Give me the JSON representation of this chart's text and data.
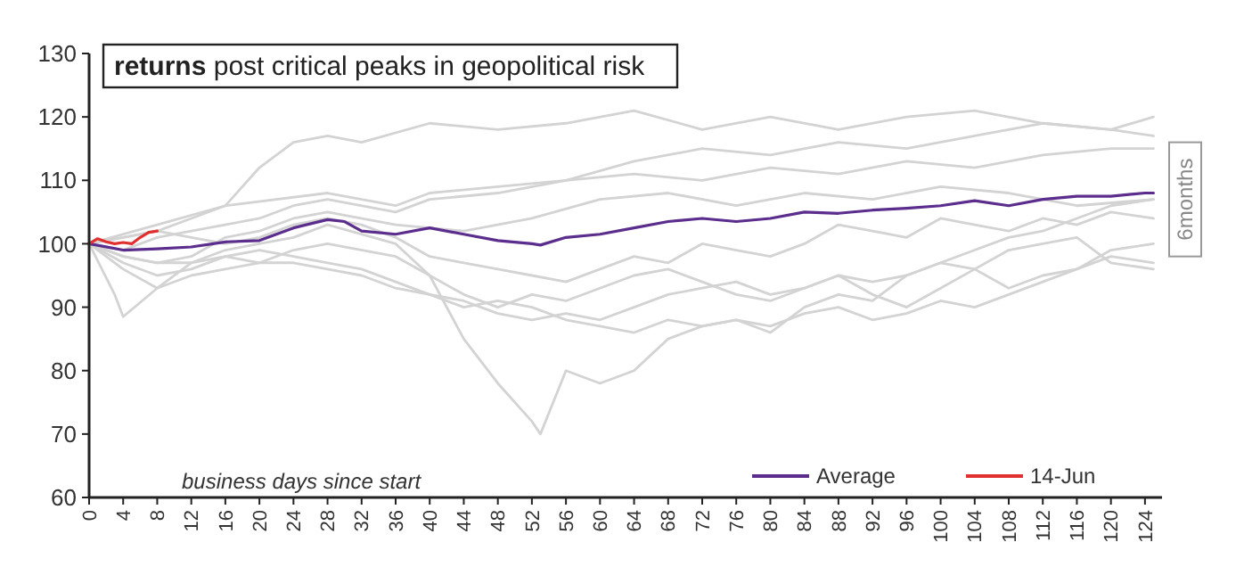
{
  "chart_data": {
    "type": "line",
    "title": "returns post critical peaks in geopolitical risk",
    "xlim": [
      0,
      126
    ],
    "xticks": [
      0,
      4,
      8,
      12,
      16,
      20,
      24,
      28,
      32,
      36,
      40,
      44,
      48,
      52,
      56,
      60,
      64,
      68,
      72,
      76,
      80,
      84,
      88,
      92,
      96,
      100,
      104,
      108,
      112,
      116,
      120,
      124
    ],
    "ylim": [
      60,
      130
    ],
    "yticks": [
      60,
      70,
      80,
      90,
      100,
      110,
      120,
      130
    ],
    "grid": false,
    "legend": "bottom right",
    "line_style": "solid",
    "marker": "none",
    "annotations": [
      "business days since start",
      "6months"
    ],
    "series": [
      {
        "color": "#d3d3d3",
        "x": [
          0,
          8,
          16,
          20,
          24,
          28,
          32,
          40,
          48,
          56,
          64,
          72,
          80,
          88,
          96,
          104,
          112,
          120,
          125
        ],
        "values": [
          100,
          103,
          106,
          112,
          116,
          117,
          116,
          119,
          118,
          119,
          121,
          118,
          120,
          118,
          120,
          121,
          119,
          118,
          120
        ]
      },
      {
        "color": "#d3d3d3",
        "x": [
          0,
          4,
          8,
          12,
          16,
          28,
          36,
          40,
          48,
          56,
          64,
          72,
          80,
          88,
          96,
          104,
          112,
          120,
          125
        ],
        "values": [
          100,
          101,
          102,
          104,
          106,
          108,
          106,
          108,
          109,
          110,
          113,
          115,
          114,
          116,
          115,
          117,
          119,
          118,
          117
        ]
      },
      {
        "color": "#d3d3d3",
        "x": [
          0,
          4,
          8,
          12,
          20,
          24,
          28,
          36,
          40,
          48,
          56,
          64,
          72,
          80,
          88,
          96,
          104,
          112,
          120,
          125
        ],
        "values": [
          100,
          99,
          101,
          102,
          104,
          106,
          107,
          105,
          107,
          108,
          110,
          111,
          110,
          112,
          111,
          113,
          112,
          114,
          115,
          115
        ]
      },
      {
        "color": "#d3d3d3",
        "x": [
          0,
          4,
          8,
          12,
          16,
          20,
          24,
          28,
          36,
          44,
          52,
          60,
          68,
          76,
          84,
          92,
          100,
          108,
          116,
          125
        ],
        "values": [
          100,
          98,
          97,
          98,
          101,
          102,
          104,
          105,
          103,
          102,
          104,
          107,
          108,
          106,
          108,
          107,
          109,
          108,
          106,
          107
        ]
      },
      {
        "color": "#d3d3d3",
        "x": [
          0,
          4,
          8,
          12,
          16,
          20,
          24,
          28,
          36,
          40,
          44,
          48,
          52,
          53,
          56,
          60,
          64,
          68,
          72,
          76,
          80,
          84,
          88,
          92,
          96,
          100,
          104,
          108,
          112,
          116,
          120,
          125
        ],
        "values": [
          100,
          98,
          97,
          97,
          99,
          100,
          101,
          103,
          100,
          95,
          85,
          78,
          72,
          70,
          80,
          78,
          80,
          85,
          87,
          88,
          86,
          90,
          92,
          91,
          95,
          97,
          99,
          101,
          102,
          104,
          106,
          107
        ]
      },
      {
        "color": "#d3d3d3",
        "x": [
          0,
          4,
          8,
          12,
          16,
          20,
          24,
          28,
          36,
          40,
          44,
          48,
          52,
          56,
          60,
          64,
          68,
          72,
          76,
          80,
          84,
          88,
          92,
          96,
          100,
          104,
          108,
          112,
          116,
          120,
          125
        ],
        "values": [
          100,
          96,
          93,
          97,
          98,
          97,
          99,
          100,
          98,
          95,
          92,
          90,
          92,
          91,
          93,
          95,
          96,
          94,
          92,
          91,
          93,
          95,
          92,
          90,
          93,
          96,
          99,
          100,
          101,
          97,
          96
        ]
      },
      {
        "color": "#d3d3d3",
        "x": [
          0,
          3,
          4,
          8,
          12,
          16,
          20,
          24,
          28,
          32,
          36,
          40,
          44,
          48,
          52,
          56,
          60,
          64,
          68,
          72,
          76,
          80,
          84,
          88,
          92,
          96,
          100,
          104,
          108,
          112,
          116,
          120,
          125
        ],
        "values": [
          100,
          92,
          88.5,
          93,
          95,
          96,
          97,
          97,
          96,
          95,
          93,
          92,
          91,
          89,
          88,
          89,
          88,
          90,
          92,
          93,
          94,
          92,
          93,
          95,
          94,
          95,
          97,
          96,
          93,
          95,
          96,
          98,
          97
        ]
      },
      {
        "color": "#d3d3d3",
        "x": [
          0,
          4,
          8,
          12,
          16,
          20,
          24,
          28,
          32,
          36,
          40,
          44,
          48,
          52,
          56,
          60,
          64,
          68,
          72,
          76,
          80,
          84,
          88,
          92,
          96,
          100,
          104,
          108,
          112,
          116,
          120,
          125
        ],
        "values": [
          100,
          97,
          95,
          96,
          98,
          99,
          98,
          97,
          96,
          94,
          92,
          90,
          91,
          90,
          88,
          87,
          86,
          88,
          87,
          88,
          87,
          89,
          90,
          88,
          89,
          91,
          90,
          92,
          94,
          96,
          99,
          100
        ]
      },
      {
        "color": "#d3d3d3",
        "x": [
          0,
          4,
          8,
          12,
          16,
          20,
          24,
          28,
          32,
          36,
          40,
          44,
          48,
          52,
          56,
          60,
          64,
          68,
          72,
          76,
          80,
          84,
          88,
          92,
          96,
          100,
          104,
          108,
          112,
          116,
          120,
          125
        ],
        "values": [
          100,
          101,
          102,
          101,
          100,
          101,
          103,
          104,
          103,
          101,
          98,
          97,
          96,
          95,
          94,
          96,
          98,
          97,
          100,
          99,
          98,
          100,
          103,
          102,
          101,
          104,
          103,
          102,
          104,
          103,
          105,
          104
        ]
      },
      {
        "name": "Average",
        "color": "#5b2d8c",
        "x": [
          0,
          4,
          8,
          12,
          16,
          20,
          24,
          28,
          30,
          32,
          36,
          40,
          44,
          48,
          52,
          53,
          56,
          60,
          64,
          68,
          72,
          76,
          80,
          84,
          88,
          92,
          96,
          100,
          104,
          108,
          112,
          116,
          120,
          124,
          125
        ],
        "values": [
          100,
          99,
          99.2,
          99.5,
          100.3,
          100.5,
          102.5,
          103.8,
          103.5,
          102,
          101.5,
          102.5,
          101.5,
          100.5,
          100,
          99.8,
          101,
          101.5,
          102.5,
          103.5,
          104,
          103.5,
          104,
          105,
          104.8,
          105.3,
          105.6,
          106,
          106.8,
          106,
          107,
          107.5,
          107.5,
          108,
          108
        ]
      },
      {
        "name": "14-Jun",
        "color": "#e03030",
        "x": [
          0,
          1,
          2,
          3,
          4,
          5,
          6,
          7,
          8
        ],
        "values": [
          100,
          100.8,
          100.3,
          100,
          100.2,
          100,
          101,
          101.8,
          102
        ]
      }
    ]
  }
}
